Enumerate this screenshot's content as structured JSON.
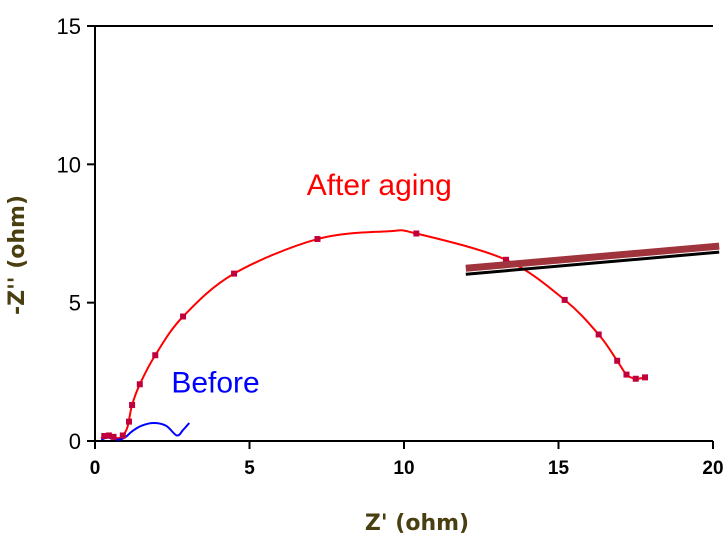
{
  "chart_data": {
    "type": "scatter",
    "title": "",
    "xlabel": "Z' (ohm)",
    "ylabel": "-Z'' (ohm)",
    "xlim": [
      0,
      20
    ],
    "ylim": [
      0,
      15
    ],
    "xticks": [
      "0",
      "5",
      "10",
      "15",
      "20"
    ],
    "yticks": [
      "0",
      "5",
      "10",
      "15"
    ],
    "grid": false,
    "series": [
      {
        "name": "After aging",
        "color": "#ff0000",
        "marker_color": "#c0003c",
        "line": [
          [
            0.2,
            0.1
          ],
          [
            0.3,
            0.18
          ],
          [
            0.45,
            0.2
          ],
          [
            0.6,
            0.15
          ],
          [
            0.75,
            0.1
          ],
          [
            0.9,
            0.2
          ],
          [
            1.05,
            0.5
          ],
          [
            1.2,
            1.3
          ],
          [
            1.45,
            2.05
          ],
          [
            1.95,
            3.1
          ],
          [
            2.85,
            4.5
          ],
          [
            4.5,
            6.05
          ],
          [
            7.2,
            7.3
          ],
          [
            9.5,
            7.58
          ],
          [
            10.4,
            7.5
          ],
          [
            13.3,
            6.55
          ],
          [
            15.2,
            5.1
          ],
          [
            16.3,
            3.85
          ],
          [
            16.9,
            2.9
          ],
          [
            17.2,
            2.4
          ],
          [
            17.5,
            2.25
          ],
          [
            17.8,
            2.3
          ]
        ],
        "points": [
          [
            0.3,
            0.18
          ],
          [
            0.45,
            0.2
          ],
          [
            0.6,
            0.15
          ],
          [
            0.9,
            0.2
          ],
          [
            1.1,
            0.7
          ],
          [
            1.2,
            1.3
          ],
          [
            1.45,
            2.05
          ],
          [
            1.95,
            3.1
          ],
          [
            2.85,
            4.5
          ],
          [
            4.5,
            6.05
          ],
          [
            7.2,
            7.3
          ],
          [
            10.4,
            7.5
          ],
          [
            13.3,
            6.55
          ],
          [
            15.2,
            5.1
          ],
          [
            16.3,
            3.85
          ],
          [
            16.9,
            2.9
          ],
          [
            17.2,
            2.4
          ],
          [
            17.5,
            2.25
          ],
          [
            17.8,
            2.3
          ]
        ]
      },
      {
        "name": "Before",
        "color": "#0000ff",
        "line": [
          [
            0.2,
            0.05
          ],
          [
            0.4,
            0.12
          ],
          [
            0.6,
            0.08
          ],
          [
            0.8,
            0.05
          ],
          [
            1.0,
            0.15
          ],
          [
            1.2,
            0.35
          ],
          [
            1.5,
            0.55
          ],
          [
            1.9,
            0.65
          ],
          [
            2.3,
            0.55
          ],
          [
            2.65,
            0.2
          ],
          [
            2.85,
            0.4
          ],
          [
            3.05,
            0.65
          ]
        ]
      }
    ],
    "annotations": [
      {
        "text": "After aging",
        "x": 9.2,
        "y": 8.9,
        "color": "#ff0000"
      },
      {
        "text": "Before",
        "x": 3.9,
        "y": 1.75,
        "color": "#0000ff"
      }
    ],
    "overlay_line": {
      "from": [
        12,
        6.1
      ],
      "to": [
        20.2,
        6.9
      ],
      "color": "#000000",
      "shadow": "#a0343c"
    }
  }
}
